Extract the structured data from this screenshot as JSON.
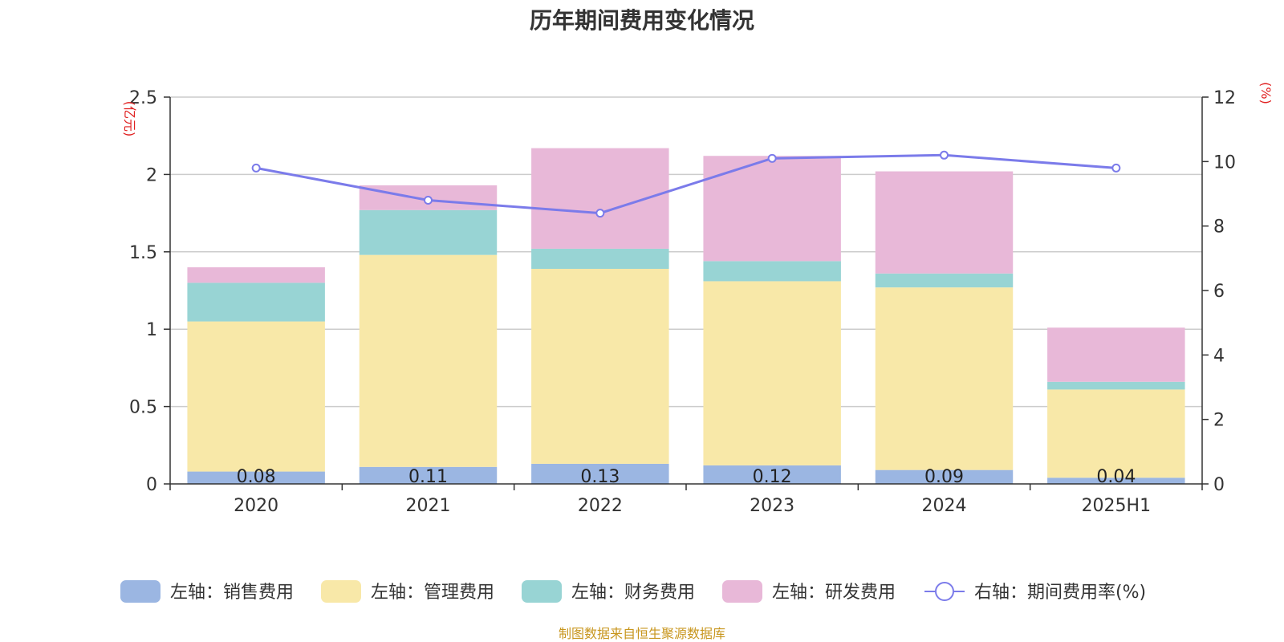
{
  "title": "历年期间费用变化情况",
  "source": "制图数据来自恒生聚源数据库",
  "colors": {
    "sales": "#9bb6e2",
    "admin": "#f8e8a8",
    "finance": "#98d4d4",
    "rd": "#e8b8d8",
    "rate": "#7b7bea",
    "unit": "#e02020",
    "source": "#c8961e",
    "grid": "#cccccc",
    "axis": "#333333"
  },
  "chart_data": {
    "type": "bar",
    "stacked": true,
    "categories": [
      "2020",
      "2021",
      "2022",
      "2023",
      "2024",
      "2025H1"
    ],
    "left_unit": "(亿元)",
    "right_unit": "(%)",
    "ylim_left": [
      0,
      2.5
    ],
    "ylim_right": [
      0,
      12
    ],
    "left_ticks": [
      "0",
      "0.5",
      "1",
      "1.5",
      "2",
      "2.5"
    ],
    "right_ticks": [
      "0",
      "2",
      "4",
      "6",
      "8",
      "10",
      "12"
    ],
    "series": [
      {
        "name": "左轴：销售费用",
        "key": "sales",
        "values": [
          0.08,
          0.11,
          0.13,
          0.12,
          0.09,
          0.04
        ],
        "labels": [
          "0.08",
          "0.11",
          "0.13",
          "0.12",
          "0.09",
          "0.04"
        ]
      },
      {
        "name": "左轴：管理费用",
        "key": "admin",
        "values": [
          0.97,
          1.37,
          1.26,
          1.19,
          1.18,
          0.57
        ]
      },
      {
        "name": "左轴：财务费用",
        "key": "finance",
        "values": [
          0.25,
          0.29,
          0.13,
          0.13,
          0.09,
          0.05
        ]
      },
      {
        "name": "左轴：研发费用",
        "key": "rd",
        "values": [
          0.1,
          0.16,
          0.65,
          0.68,
          0.66,
          0.35
        ]
      }
    ],
    "line": {
      "name": "右轴：期间费用率(%)",
      "values": [
        9.8,
        8.8,
        8.4,
        10.1,
        10.2,
        9.8
      ]
    },
    "grid": true,
    "legend_position": "bottom"
  }
}
